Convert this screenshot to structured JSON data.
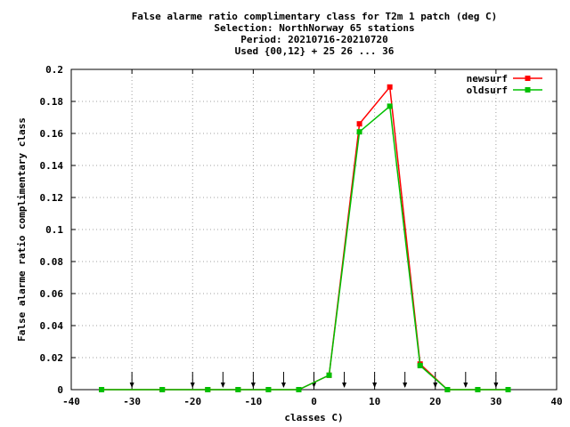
{
  "chart_data": {
    "type": "line",
    "title_lines": [
      "False alarme ratio complimentary class  for T2m 1 patch (deg C)",
      "Selection: NorthNorway     65 stations",
      "Period: 20210716-20210720",
      "Used {00,12} + 25 26 ... 36"
    ],
    "xlabel": "classes C)",
    "ylabel": "False alarme ratio complimentary class",
    "xlim": [
      -40,
      40
    ],
    "ylim": [
      0,
      0.2
    ],
    "x_ticks": [
      -40,
      -30,
      -20,
      -10,
      0,
      10,
      20,
      30,
      40
    ],
    "x_tick_labels": [
      "-40",
      "-30",
      "-20",
      "-10",
      "0",
      "10",
      "20",
      "30",
      "40"
    ],
    "y_ticks": [
      0,
      0.02,
      0.04,
      0.06,
      0.08,
      0.1,
      0.12,
      0.14,
      0.16,
      0.18,
      0.2
    ],
    "y_tick_labels": [
      "0",
      "0.02",
      "0.04",
      "0.06",
      "0.08",
      "0.1",
      "0.12",
      "0.14",
      "0.16",
      "0.18",
      "0.2"
    ],
    "grid": true,
    "legend_position": "top-right",
    "class_arrows_x": [
      -30,
      -20,
      -15,
      -10,
      -5,
      0,
      5,
      10,
      15,
      20,
      25,
      30
    ],
    "series": [
      {
        "name": "newsurf",
        "color": "#ff0000",
        "x": [
          -35,
          -25,
          -17.5,
          -12.5,
          -7.5,
          -2.5,
          2.5,
          7.5,
          12.5,
          17.5,
          22,
          27,
          32
        ],
        "values": [
          0,
          0,
          0,
          0,
          0,
          0,
          0.009,
          0.166,
          0.189,
          0.016,
          0,
          0,
          0
        ]
      },
      {
        "name": "oldsurf",
        "color": "#00c000",
        "x": [
          -35,
          -25,
          -17.5,
          -12.5,
          -7.5,
          -2.5,
          2.5,
          7.5,
          12.5,
          17.5,
          22,
          27,
          32
        ],
        "values": [
          0,
          0,
          0,
          0,
          0,
          0,
          0.009,
          0.161,
          0.177,
          0.015,
          0,
          0,
          0
        ]
      }
    ]
  }
}
